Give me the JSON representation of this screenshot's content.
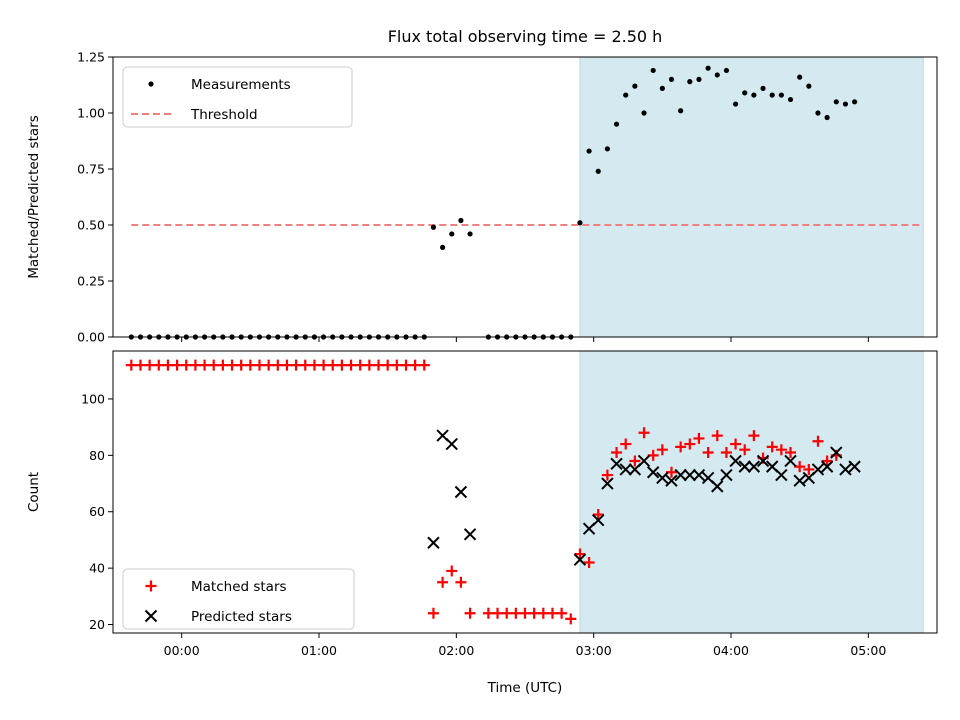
{
  "title": "Flux total observing time = 2.50 h",
  "colors": {
    "shade": "#d4eaf0",
    "threshold": "#f08080",
    "measurement": "#000000",
    "matched": "#ff0000",
    "predicted": "#000000"
  },
  "chart_data": [
    {
      "type": "scatter",
      "ylabel": "Matched/Predicted stars",
      "ylim": [
        0,
        1.25
      ],
      "yticks": [
        "0.00",
        "0.25",
        "0.50",
        "0.75",
        "1.00",
        "1.25"
      ],
      "xlim": [
        "-00:30",
        "05:30"
      ],
      "shaded_region": [
        "02:54",
        "05:24"
      ],
      "legend": {
        "placement": "upper-left",
        "entries": [
          "Measurements",
          "Threshold"
        ]
      },
      "threshold": {
        "name": "Threshold",
        "value": 0.5,
        "x_range": [
          "-00:22",
          "05:24"
        ]
      },
      "series": [
        {
          "name": "Measurements",
          "points": [
            [
              "-00:22",
              0
            ],
            [
              "-00:18",
              0
            ],
            [
              "-00:14",
              0
            ],
            [
              "-00:10",
              0
            ],
            [
              "-00:06",
              0
            ],
            [
              "-00:02",
              0
            ],
            [
              "00:02",
              0
            ],
            [
              "00:06",
              0
            ],
            [
              "00:10",
              0
            ],
            [
              "00:14",
              0
            ],
            [
              "00:18",
              0
            ],
            [
              "00:22",
              0
            ],
            [
              "00:26",
              0
            ],
            [
              "00:30",
              0
            ],
            [
              "00:34",
              0
            ],
            [
              "00:38",
              0
            ],
            [
              "00:42",
              0
            ],
            [
              "00:46",
              0
            ],
            [
              "00:50",
              0
            ],
            [
              "00:54",
              0
            ],
            [
              "00:58",
              0
            ],
            [
              "01:02",
              0
            ],
            [
              "01:06",
              0
            ],
            [
              "01:10",
              0
            ],
            [
              "01:14",
              0
            ],
            [
              "01:18",
              0
            ],
            [
              "01:22",
              0
            ],
            [
              "01:26",
              0
            ],
            [
              "01:30",
              0
            ],
            [
              "01:34",
              0
            ],
            [
              "01:38",
              0
            ],
            [
              "01:42",
              0
            ],
            [
              "01:46",
              0
            ],
            [
              "01:50",
              0.49
            ],
            [
              "01:54",
              0.4
            ],
            [
              "01:58",
              0.46
            ],
            [
              "02:02",
              0.52
            ],
            [
              "02:06",
              0.46
            ],
            [
              "02:14",
              0
            ],
            [
              "02:18",
              0
            ],
            [
              "02:22",
              0
            ],
            [
              "02:26",
              0
            ],
            [
              "02:30",
              0
            ],
            [
              "02:34",
              0
            ],
            [
              "02:38",
              0
            ],
            [
              "02:42",
              0
            ],
            [
              "02:46",
              0
            ],
            [
              "02:50",
              0
            ],
            [
              "02:54",
              0.51
            ],
            [
              "02:58",
              0.83
            ],
            [
              "03:02",
              0.74
            ],
            [
              "03:06",
              0.84
            ],
            [
              "03:10",
              0.95
            ],
            [
              "03:14",
              1.08
            ],
            [
              "03:18",
              1.12
            ],
            [
              "03:22",
              1.0
            ],
            [
              "03:26",
              1.19
            ],
            [
              "03:30",
              1.11
            ],
            [
              "03:34",
              1.15
            ],
            [
              "03:38",
              1.01
            ],
            [
              "03:42",
              1.14
            ],
            [
              "03:46",
              1.15
            ],
            [
              "03:50",
              1.2
            ],
            [
              "03:54",
              1.17
            ],
            [
              "03:58",
              1.19
            ],
            [
              "04:02",
              1.04
            ],
            [
              "04:06",
              1.09
            ],
            [
              "04:10",
              1.08
            ],
            [
              "04:14",
              1.11
            ],
            [
              "04:18",
              1.08
            ],
            [
              "04:22",
              1.08
            ],
            [
              "04:26",
              1.06
            ],
            [
              "04:30",
              1.16
            ],
            [
              "04:34",
              1.12
            ],
            [
              "04:38",
              1.0
            ],
            [
              "04:42",
              0.98
            ],
            [
              "04:46",
              1.05
            ],
            [
              "04:50",
              1.04
            ],
            [
              "04:54",
              1.05
            ]
          ]
        }
      ]
    },
    {
      "type": "scatter",
      "ylabel": "Count",
      "xlabel": "Time (UTC)",
      "ylim": [
        17,
        117
      ],
      "yticks": [
        "20",
        "40",
        "60",
        "80",
        "100"
      ],
      "xlim": [
        "-00:30",
        "05:30"
      ],
      "xticks": [
        "00:00",
        "01:00",
        "02:00",
        "03:00",
        "04:00",
        "05:00"
      ],
      "shaded_region": [
        "02:54",
        "05:24"
      ],
      "legend": {
        "placement": "lower-left",
        "entries": [
          "Matched stars",
          "Predicted stars"
        ]
      },
      "series": [
        {
          "name": "Matched stars",
          "marker": "plus",
          "points": [
            [
              "-00:22",
              112
            ],
            [
              "-00:18",
              112
            ],
            [
              "-00:14",
              112
            ],
            [
              "-00:10",
              112
            ],
            [
              "-00:06",
              112
            ],
            [
              "-00:02",
              112
            ],
            [
              "00:02",
              112
            ],
            [
              "00:06",
              112
            ],
            [
              "00:10",
              112
            ],
            [
              "00:14",
              112
            ],
            [
              "00:18",
              112
            ],
            [
              "00:22",
              112
            ],
            [
              "00:26",
              112
            ],
            [
              "00:30",
              112
            ],
            [
              "00:34",
              112
            ],
            [
              "00:38",
              112
            ],
            [
              "00:42",
              112
            ],
            [
              "00:46",
              112
            ],
            [
              "00:50",
              112
            ],
            [
              "00:54",
              112
            ],
            [
              "00:58",
              112
            ],
            [
              "01:02",
              112
            ],
            [
              "01:06",
              112
            ],
            [
              "01:10",
              112
            ],
            [
              "01:14",
              112
            ],
            [
              "01:18",
              112
            ],
            [
              "01:22",
              112
            ],
            [
              "01:26",
              112
            ],
            [
              "01:30",
              112
            ],
            [
              "01:34",
              112
            ],
            [
              "01:38",
              112
            ],
            [
              "01:42",
              112
            ],
            [
              "01:46",
              112
            ],
            [
              "01:50",
              24
            ],
            [
              "01:54",
              35
            ],
            [
              "01:58",
              39
            ],
            [
              "02:02",
              35
            ],
            [
              "02:06",
              24
            ],
            [
              "02:14",
              24
            ],
            [
              "02:18",
              24
            ],
            [
              "02:22",
              24
            ],
            [
              "02:26",
              24
            ],
            [
              "02:30",
              24
            ],
            [
              "02:34",
              24
            ],
            [
              "02:38",
              24
            ],
            [
              "02:42",
              24
            ],
            [
              "02:46",
              24
            ],
            [
              "02:50",
              22
            ],
            [
              "02:54",
              45
            ],
            [
              "02:58",
              42
            ],
            [
              "03:02",
              59
            ],
            [
              "03:06",
              73
            ],
            [
              "03:10",
              81
            ],
            [
              "03:14",
              84
            ],
            [
              "03:18",
              78
            ],
            [
              "03:22",
              88
            ],
            [
              "03:26",
              80
            ],
            [
              "03:30",
              82
            ],
            [
              "03:34",
              74
            ],
            [
              "03:38",
              83
            ],
            [
              "03:42",
              84
            ],
            [
              "03:46",
              86
            ],
            [
              "03:50",
              81
            ],
            [
              "03:54",
              87
            ],
            [
              "03:58",
              81
            ],
            [
              "04:02",
              84
            ],
            [
              "04:06",
              82
            ],
            [
              "04:10",
              87
            ],
            [
              "04:14",
              79
            ],
            [
              "04:18",
              83
            ],
            [
              "04:22",
              82
            ],
            [
              "04:26",
              81
            ],
            [
              "04:30",
              76
            ],
            [
              "04:34",
              75
            ],
            [
              "04:38",
              85
            ],
            [
              "04:42",
              78
            ],
            [
              "04:46",
              80
            ]
          ]
        },
        {
          "name": "Predicted stars",
          "marker": "x",
          "points": [
            [
              "01:50",
              49
            ],
            [
              "01:54",
              87
            ],
            [
              "01:58",
              84
            ],
            [
              "02:02",
              67
            ],
            [
              "02:06",
              52
            ],
            [
              "02:54",
              43
            ],
            [
              "02:58",
              54
            ],
            [
              "03:02",
              57
            ],
            [
              "03:06",
              70
            ],
            [
              "03:10",
              77
            ],
            [
              "03:14",
              75
            ],
            [
              "03:18",
              75
            ],
            [
              "03:22",
              78
            ],
            [
              "03:26",
              74
            ],
            [
              "03:30",
              72
            ],
            [
              "03:34",
              71
            ],
            [
              "03:38",
              73
            ],
            [
              "03:42",
              73
            ],
            [
              "03:46",
              73
            ],
            [
              "03:50",
              72
            ],
            [
              "03:54",
              69
            ],
            [
              "03:58",
              73
            ],
            [
              "04:02",
              78
            ],
            [
              "04:06",
              76
            ],
            [
              "04:10",
              76
            ],
            [
              "04:14",
              78
            ],
            [
              "04:18",
              76
            ],
            [
              "04:22",
              73
            ],
            [
              "04:26",
              78
            ],
            [
              "04:30",
              71
            ],
            [
              "04:34",
              72
            ],
            [
              "04:38",
              75
            ],
            [
              "04:42",
              76
            ],
            [
              "04:46",
              81
            ],
            [
              "04:50",
              75
            ],
            [
              "04:54",
              76
            ]
          ]
        }
      ]
    }
  ]
}
